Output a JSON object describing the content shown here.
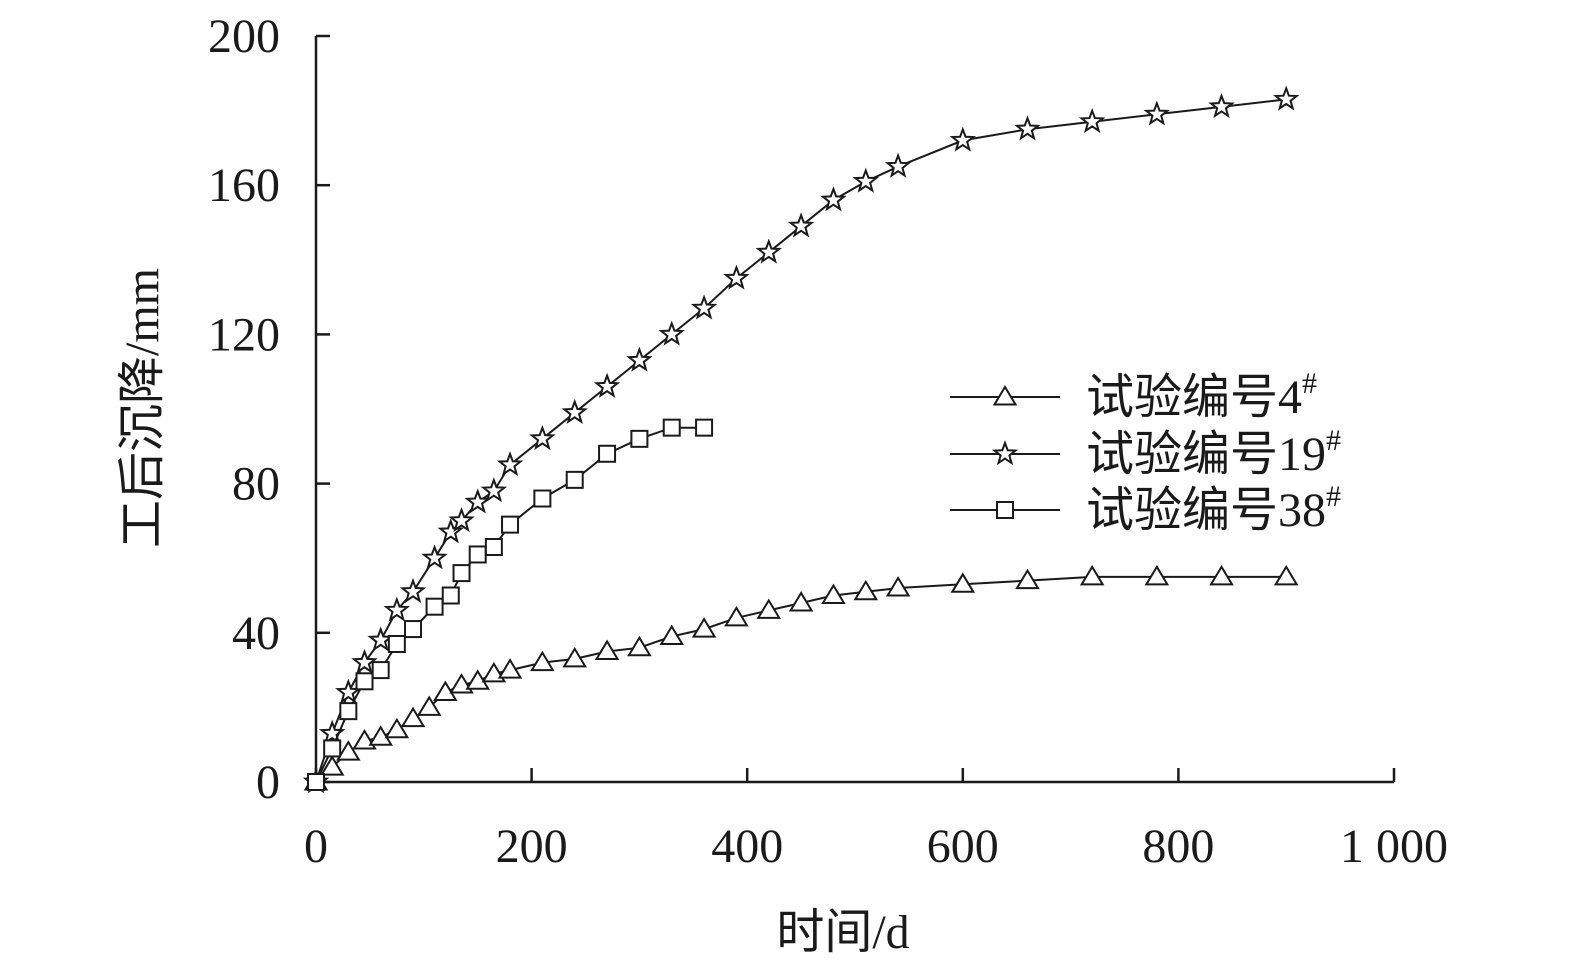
{
  "chart_data": {
    "type": "line",
    "xlabel": "时间/d",
    "ylabel": "工后沉降/mm",
    "xlim": [
      0,
      1000
    ],
    "ylim": [
      0,
      200
    ],
    "xticks": [
      0,
      200,
      400,
      600,
      800,
      1000
    ],
    "xtick_labels": [
      "0",
      "200",
      "400",
      "600",
      "800",
      "1 000"
    ],
    "yticks": [
      0,
      40,
      80,
      120,
      160,
      200
    ],
    "ytick_labels": [
      "0",
      "40",
      "80",
      "120",
      "160",
      "200"
    ],
    "grid": false,
    "legend_position": "right-middle",
    "series": [
      {
        "name": "试验编号4",
        "name_sup": "#",
        "marker": "triangle",
        "x": [
          0,
          15,
          30,
          45,
          60,
          75,
          90,
          105,
          120,
          135,
          150,
          165,
          180,
          210,
          240,
          270,
          300,
          330,
          360,
          390,
          420,
          450,
          480,
          510,
          540,
          600,
          660,
          720,
          780,
          840,
          900
        ],
        "y": [
          0,
          4,
          8,
          11,
          12,
          14,
          17,
          20,
          24,
          26,
          27,
          29,
          30,
          32,
          33,
          35,
          36,
          39,
          41,
          44,
          46,
          48,
          50,
          51,
          52,
          53,
          54,
          55,
          55,
          55,
          55
        ]
      },
      {
        "name": "试验编号19",
        "name_sup": "#",
        "marker": "star",
        "x": [
          0,
          15,
          30,
          45,
          60,
          75,
          90,
          110,
          125,
          135,
          150,
          165,
          180,
          210,
          240,
          270,
          300,
          330,
          360,
          390,
          420,
          450,
          480,
          510,
          540,
          600,
          660,
          720,
          780,
          840,
          900
        ],
        "y": [
          0,
          13,
          24,
          32,
          38,
          46,
          51,
          60,
          67,
          70,
          75,
          78,
          85,
          92,
          99,
          106,
          113,
          120,
          127,
          135,
          142,
          149,
          156,
          161,
          165,
          172,
          175,
          177,
          179,
          181,
          183
        ]
      },
      {
        "name": "试验编号38",
        "name_sup": "#",
        "marker": "square",
        "x": [
          0,
          15,
          30,
          45,
          60,
          75,
          90,
          110,
          125,
          135,
          150,
          165,
          180,
          210,
          240,
          270,
          300,
          330,
          360
        ],
        "y": [
          0,
          9,
          19,
          27,
          30,
          37,
          41,
          47,
          50,
          56,
          61,
          63,
          69,
          76,
          81,
          88,
          92,
          95,
          95
        ]
      }
    ]
  }
}
